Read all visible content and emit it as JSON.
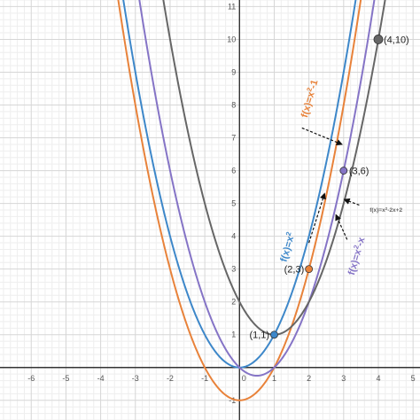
{
  "chart_data": {
    "type": "line",
    "title": "",
    "xlabel": "",
    "ylabel": "",
    "xlim": [
      -6.9,
      5.2
    ],
    "ylim": [
      -1.6,
      11.2
    ],
    "grid": true,
    "x_ticks": [
      "-6",
      "-5",
      "-4",
      "-3",
      "-2",
      "-1",
      "0",
      "1",
      "2",
      "3",
      "4",
      "5"
    ],
    "y_ticks": [
      "-1",
      "1",
      "2",
      "3",
      "4",
      "5",
      "6",
      "7",
      "8",
      "9",
      "10",
      "11"
    ],
    "series": [
      {
        "name": "f(x)=x²-1",
        "label_text": "f(x)=x",
        "label_sup": "2",
        "label_tail": "-1",
        "color": "#e8823a",
        "formula": "x^2-1"
      },
      {
        "name": "f(x)=x 2",
        "label_text": "f(x)=x",
        "label_sup": "2",
        "label_tail": "",
        "color": "#3d87c9",
        "formula": "x^2"
      },
      {
        "name": "f(x)=x²-x",
        "label_text": "f(x)=x",
        "label_sup": "2",
        "label_tail": "-x",
        "color": "#8574c6",
        "formula": "x^2-x"
      },
      {
        "name": "f(x)=x²-2x+2",
        "label_text": "f(x)=x",
        "label_sup": "2",
        "label_tail": "-2x+2",
        "color": "#666666",
        "formula": "x^2-2x+2"
      }
    ],
    "points": [
      {
        "label": "(1,1)",
        "x": 1,
        "y": 1,
        "color": "#3d87c9"
      },
      {
        "label": "(2,3)",
        "x": 2,
        "y": 3,
        "color": "#e8823a"
      },
      {
        "label": "(3,6)",
        "x": 3,
        "y": 6,
        "color": "#8574c6"
      },
      {
        "label": "(4,10)",
        "x": 4,
        "y": 10,
        "color": "#666666"
      }
    ]
  }
}
